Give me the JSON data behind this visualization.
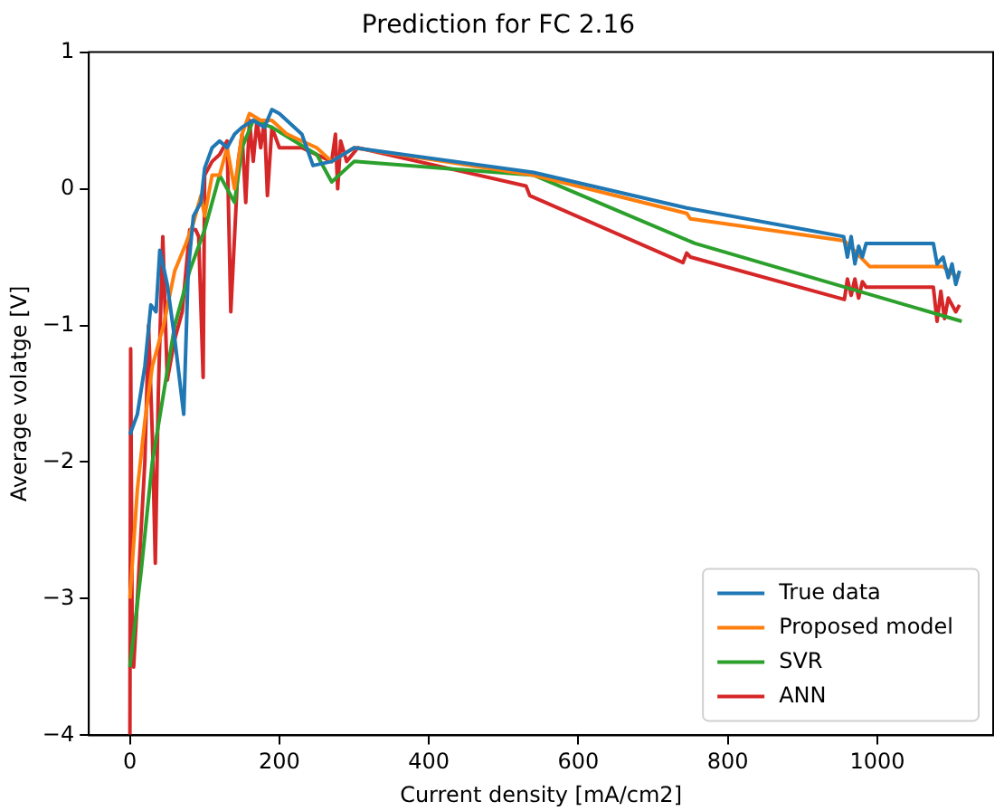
{
  "chart_data": {
    "type": "line",
    "title": "Prediction for FC 2.16",
    "xlabel": "Current density [mA/cm2]",
    "ylabel": "Average volatge [V]",
    "xlim": [
      -55,
      1155
    ],
    "xticks": [
      0,
      200,
      400,
      600,
      800,
      1000
    ],
    "ylim": [
      -4,
      1
    ],
    "yticks": [
      -4,
      -3,
      -2,
      -1,
      0,
      1
    ],
    "grid": false,
    "legend": "bottom right",
    "marker": "none",
    "line_style": "solid",
    "series": [
      {
        "name": "True data",
        "color": "#1f77b4",
        "x": [
          0,
          10,
          20,
          28,
          35,
          40,
          50,
          60,
          72,
          78,
          85,
          95,
          100,
          110,
          120,
          130,
          140,
          150,
          165,
          180,
          190,
          200,
          230,
          245,
          270,
          300,
          540,
          745,
          955,
          960,
          965,
          970,
          975,
          980,
          985,
          993,
          1075,
          1080,
          1088,
          1095,
          1100,
          1105,
          1110
        ],
        "values": [
          -1.8,
          -1.65,
          -1.3,
          -0.85,
          -0.9,
          -0.45,
          -0.7,
          -1.1,
          -1.65,
          -0.6,
          -0.2,
          -0.1,
          0.15,
          0.3,
          0.35,
          0.3,
          0.4,
          0.45,
          0.5,
          0.45,
          0.58,
          0.55,
          0.4,
          0.17,
          0.2,
          0.3,
          0.12,
          -0.14,
          -0.35,
          -0.5,
          -0.35,
          -0.55,
          -0.42,
          -0.5,
          -0.4,
          -0.4,
          -0.4,
          -0.55,
          -0.5,
          -0.65,
          -0.55,
          -0.7,
          -0.6
        ]
      },
      {
        "name": "Proposed model",
        "color": "#ff7f0e",
        "x": [
          0,
          10,
          20,
          30,
          45,
          60,
          75,
          85,
          95,
          100,
          110,
          120,
          130,
          140,
          150,
          160,
          175,
          190,
          210,
          230,
          250,
          270,
          300,
          540,
          745,
          750,
          956,
          990,
          1088,
          1100,
          1110
        ],
        "values": [
          -3.0,
          -2.2,
          -1.7,
          -1.3,
          -1.0,
          -0.6,
          -0.4,
          -0.25,
          -0.05,
          -0.2,
          0.1,
          0.1,
          0.3,
          0.0,
          0.4,
          0.55,
          0.5,
          0.5,
          0.4,
          0.35,
          0.3,
          0.2,
          0.3,
          0.1,
          -0.18,
          -0.22,
          -0.38,
          -0.57,
          -0.57,
          -0.62,
          -0.65
        ]
      },
      {
        "name": "SVR",
        "color": "#2ca02c",
        "x": [
          0,
          15,
          30,
          45,
          60,
          80,
          100,
          120,
          140,
          150,
          165,
          190,
          220,
          250,
          270,
          300,
          540,
          756,
          1113
        ],
        "values": [
          -3.5,
          -2.8,
          -2.0,
          -1.5,
          -1.0,
          -0.6,
          -0.3,
          0.1,
          -0.1,
          0.3,
          0.5,
          0.45,
          0.35,
          0.25,
          0.05,
          0.2,
          0.1,
          -0.4,
          -0.97
        ]
      },
      {
        "name": "ANN",
        "color": "#d62728",
        "x": [
          0,
          1,
          3,
          5,
          10,
          15,
          20,
          25,
          30,
          34,
          38,
          44,
          50,
          60,
          70,
          80,
          88,
          92,
          98,
          100,
          110,
          120,
          130,
          135,
          145,
          150,
          155,
          160,
          165,
          170,
          175,
          180,
          184,
          190,
          200,
          230,
          250,
          270,
          275,
          278,
          282,
          290,
          305,
          530,
          535,
          740,
          745,
          750,
          956,
          960,
          965,
          970,
          975,
          980,
          985,
          1075,
          1080,
          1085,
          1090,
          1095,
          1105,
          1110
        ],
        "values": [
          -4,
          -1.17,
          -3.2,
          -3.5,
          -3.0,
          -2.5,
          -2.0,
          -1.0,
          -1.8,
          -2.74,
          -1.5,
          -0.35,
          -1.4,
          -1.1,
          -0.9,
          -0.3,
          -0.3,
          -0.35,
          -1.38,
          0.1,
          0.2,
          0.25,
          0.35,
          -0.9,
          0.2,
          0.4,
          -0.1,
          0.5,
          0.2,
          0.5,
          0.3,
          0.5,
          -0.05,
          0.45,
          0.3,
          0.3,
          0.25,
          0.2,
          0.4,
          0.0,
          0.35,
          0.2,
          0.3,
          0.02,
          -0.05,
          -0.54,
          -0.47,
          -0.5,
          -0.81,
          -0.66,
          -0.78,
          -0.66,
          -0.8,
          -0.68,
          -0.72,
          -0.72,
          -0.97,
          -0.75,
          -0.95,
          -0.8,
          -0.9,
          -0.85
        ]
      }
    ]
  }
}
